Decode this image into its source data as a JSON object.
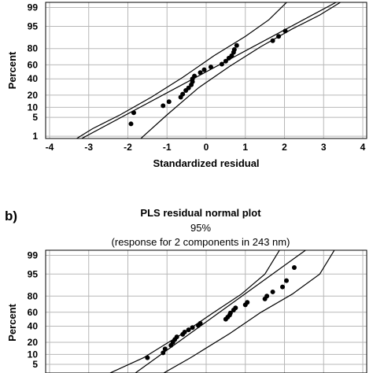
{
  "chart_data": [
    {
      "type": "scatter",
      "panel_label": "",
      "title": "",
      "subtitle": "",
      "subtitle2": "",
      "xlabel": "Standardized residual",
      "ylabel": "Percent",
      "xlim": [
        -4.1,
        4.1
      ],
      "xticks": [
        -4,
        -3,
        -2,
        -1,
        0,
        1,
        2,
        3,
        4
      ],
      "xtick_labels": [
        "-4",
        "-3",
        "-2",
        "-1",
        "0",
        "1",
        "2",
        "3",
        "4"
      ],
      "yticks": [
        1,
        5,
        10,
        20,
        40,
        60,
        80,
        95,
        99
      ],
      "ytick_labels": [
        "1",
        "5",
        "10",
        "20",
        "40",
        "60",
        "80",
        "95",
        "99"
      ],
      "grid": true,
      "points": [
        {
          "x": -1.92,
          "y": 3
        },
        {
          "x": -1.85,
          "y": 7
        },
        {
          "x": -1.1,
          "y": 11
        },
        {
          "x": -0.95,
          "y": 14
        },
        {
          "x": -0.65,
          "y": 18
        },
        {
          "x": -0.6,
          "y": 21
        },
        {
          "x": -0.52,
          "y": 25
        },
        {
          "x": -0.45,
          "y": 28
        },
        {
          "x": -0.38,
          "y": 32
        },
        {
          "x": -0.35,
          "y": 36
        },
        {
          "x": -0.35,
          "y": 40
        },
        {
          "x": -0.3,
          "y": 44
        },
        {
          "x": -0.15,
          "y": 49
        },
        {
          "x": -0.05,
          "y": 53
        },
        {
          "x": 0.12,
          "y": 57
        },
        {
          "x": 0.4,
          "y": 61
        },
        {
          "x": 0.5,
          "y": 65
        },
        {
          "x": 0.58,
          "y": 69
        },
        {
          "x": 0.65,
          "y": 72
        },
        {
          "x": 0.7,
          "y": 76
        },
        {
          "x": 0.72,
          "y": 79
        },
        {
          "x": 0.78,
          "y": 83
        },
        {
          "x": 1.7,
          "y": 87
        },
        {
          "x": 1.85,
          "y": 90
        },
        {
          "x": 2.02,
          "y": 93
        }
      ],
      "fit": {
        "x0": -3.4,
        "y0": 0.5,
        "x1": 3.4,
        "y1": 99.5
      },
      "ci_lower": [
        [
          -1.8,
          0.5
        ],
        [
          -1.0,
          6
        ],
        [
          -0.2,
          28
        ],
        [
          0.6,
          58
        ],
        [
          1.4,
          82
        ],
        [
          2.2,
          94
        ],
        [
          2.9,
          98
        ],
        [
          3.5,
          99.5
        ]
      ],
      "ci_upper": [
        [
          -3.5,
          0.5
        ],
        [
          -2.9,
          2
        ],
        [
          -2.2,
          6
        ],
        [
          -1.4,
          18
        ],
        [
          -0.6,
          42
        ],
        [
          0.2,
          72
        ],
        [
          1.0,
          90
        ],
        [
          1.6,
          97
        ],
        [
          2.1,
          99.5
        ]
      ]
    },
    {
      "type": "scatter",
      "panel_label": "b)",
      "title": "PLS residual normal plot",
      "subtitle": "95%",
      "subtitle2": "(response for 2 components in 243 nm)",
      "xlabel": "",
      "ylabel": "Percent",
      "xlim": [
        -4.1,
        4.1
      ],
      "xticks": [
        -4,
        -3,
        -2,
        -1,
        0,
        1,
        2,
        3,
        4
      ],
      "xtick_labels": [],
      "yticks": [
        5,
        10,
        20,
        40,
        60,
        80,
        95,
        99
      ],
      "ytick_labels": [
        "5",
        "10",
        "20",
        "40",
        "60",
        "80",
        "95",
        "99"
      ],
      "grid": true,
      "points": [
        {
          "x": -1.5,
          "y": 8
        },
        {
          "x": -1.1,
          "y": 11
        },
        {
          "x": -1.05,
          "y": 14
        },
        {
          "x": -0.9,
          "y": 17
        },
        {
          "x": -0.85,
          "y": 20
        },
        {
          "x": -0.8,
          "y": 23
        },
        {
          "x": -0.75,
          "y": 26
        },
        {
          "x": -0.6,
          "y": 29
        },
        {
          "x": -0.55,
          "y": 32
        },
        {
          "x": -0.45,
          "y": 35
        },
        {
          "x": -0.35,
          "y": 38
        },
        {
          "x": -0.2,
          "y": 41
        },
        {
          "x": -0.15,
          "y": 44
        },
        {
          "x": 0.5,
          "y": 50
        },
        {
          "x": 0.55,
          "y": 53
        },
        {
          "x": 0.6,
          "y": 56
        },
        {
          "x": 0.62,
          "y": 59
        },
        {
          "x": 0.7,
          "y": 63
        },
        {
          "x": 0.75,
          "y": 66
        },
        {
          "x": 1.0,
          "y": 70
        },
        {
          "x": 1.05,
          "y": 73
        },
        {
          "x": 1.5,
          "y": 77
        },
        {
          "x": 1.55,
          "y": 80
        },
        {
          "x": 1.7,
          "y": 84
        },
        {
          "x": 1.95,
          "y": 88
        },
        {
          "x": 2.05,
          "y": 92
        },
        {
          "x": 2.25,
          "y": 97
        }
      ],
      "fit": {
        "x0": -1.9,
        "y0": 2,
        "x1": 2.6,
        "y1": 99.5
      },
      "ci_lower": [
        [
          -1.2,
          2
        ],
        [
          -0.4,
          8
        ],
        [
          0.6,
          30
        ],
        [
          1.4,
          60
        ],
        [
          2.2,
          82
        ],
        [
          2.9,
          95
        ],
        [
          3.3,
          99.5
        ]
      ],
      "ci_upper": [
        [
          -2.6,
          2
        ],
        [
          -1.6,
          8
        ],
        [
          -0.6,
          30
        ],
        [
          0.2,
          60
        ],
        [
          0.9,
          82
        ],
        [
          1.5,
          95
        ],
        [
          1.9,
          99.5
        ]
      ]
    }
  ]
}
